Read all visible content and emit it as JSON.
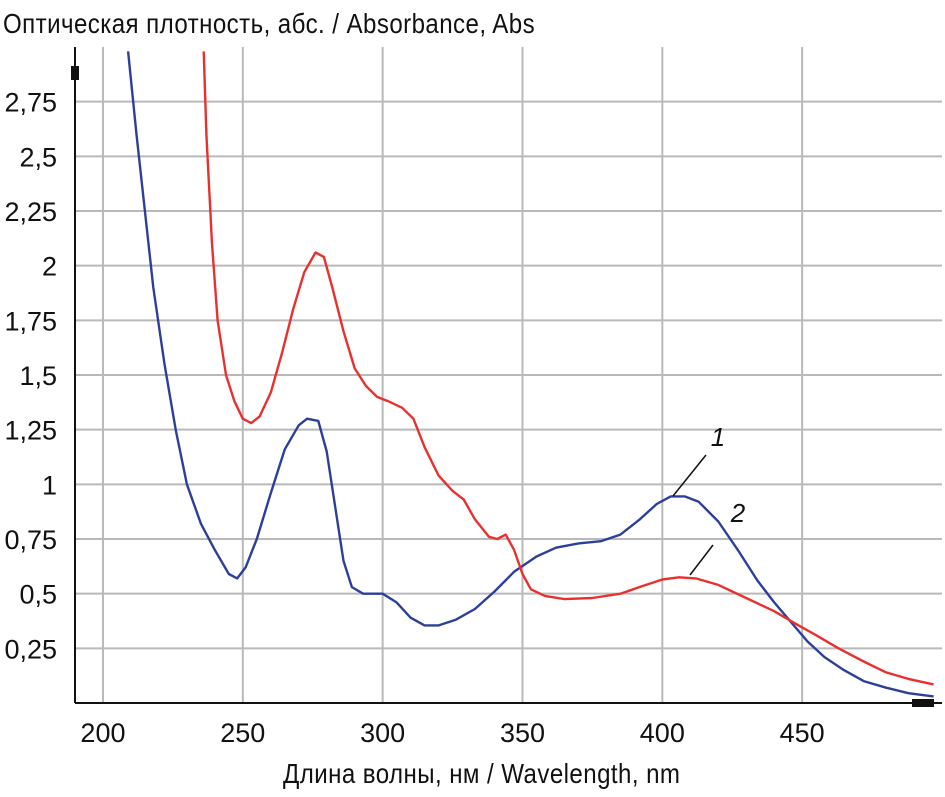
{
  "chart_data": {
    "type": "line",
    "ylabel": "Оптическая плотность, абс. / Absorbance, Abs",
    "xlabel": "Длина волны, нм / Wavelength, nm",
    "xlim": [
      190,
      500
    ],
    "ylim": [
      0,
      3
    ],
    "grid": true,
    "x_ticks": [
      200,
      250,
      300,
      350,
      400,
      450
    ],
    "x_tick_labels": [
      "200",
      "250",
      "300",
      "350",
      "400",
      "450"
    ],
    "y_ticks": [
      0.25,
      0.5,
      0.75,
      1,
      1.25,
      1.5,
      1.75,
      2,
      2.25,
      2.5,
      2.75
    ],
    "y_tick_labels": [
      "0,25",
      "0,5",
      "0,75",
      "1",
      "1,25",
      "1,5",
      "1,75",
      "2",
      "2,25",
      "2,5",
      "2,75"
    ],
    "series": [
      {
        "name": "1",
        "color": "#2e3f99",
        "points": [
          [
            209,
            2.98
          ],
          [
            212,
            2.6
          ],
          [
            215,
            2.25
          ],
          [
            218,
            1.9
          ],
          [
            222,
            1.55
          ],
          [
            226,
            1.25
          ],
          [
            230,
            1.0
          ],
          [
            235,
            0.82
          ],
          [
            240,
            0.7
          ],
          [
            245,
            0.59
          ],
          [
            248,
            0.57
          ],
          [
            251,
            0.62
          ],
          [
            255,
            0.75
          ],
          [
            260,
            0.96
          ],
          [
            265,
            1.16
          ],
          [
            270,
            1.27
          ],
          [
            273,
            1.3
          ],
          [
            277,
            1.29
          ],
          [
            280,
            1.15
          ],
          [
            283,
            0.9
          ],
          [
            286,
            0.65
          ],
          [
            289,
            0.53
          ],
          [
            293,
            0.5
          ],
          [
            300,
            0.5
          ],
          [
            305,
            0.46
          ],
          [
            310,
            0.39
          ],
          [
            315,
            0.355
          ],
          [
            320,
            0.355
          ],
          [
            326,
            0.38
          ],
          [
            333,
            0.43
          ],
          [
            340,
            0.51
          ],
          [
            347,
            0.6
          ],
          [
            355,
            0.67
          ],
          [
            362,
            0.71
          ],
          [
            370,
            0.73
          ],
          [
            378,
            0.74
          ],
          [
            385,
            0.77
          ],
          [
            392,
            0.84
          ],
          [
            398,
            0.91
          ],
          [
            403,
            0.945
          ],
          [
            408,
            0.945
          ],
          [
            413,
            0.92
          ],
          [
            420,
            0.83
          ],
          [
            427,
            0.7
          ],
          [
            434,
            0.56
          ],
          [
            440,
            0.46
          ],
          [
            446,
            0.37
          ],
          [
            452,
            0.28
          ],
          [
            458,
            0.21
          ],
          [
            465,
            0.15
          ],
          [
            472,
            0.1
          ],
          [
            480,
            0.07
          ],
          [
            488,
            0.045
          ],
          [
            497,
            0.03
          ]
        ]
      },
      {
        "name": "2",
        "color": "#e8312f",
        "points": [
          [
            236,
            2.98
          ],
          [
            237,
            2.6
          ],
          [
            239,
            2.1
          ],
          [
            241,
            1.75
          ],
          [
            244,
            1.5
          ],
          [
            247,
            1.38
          ],
          [
            250,
            1.3
          ],
          [
            253,
            1.28
          ],
          [
            256,
            1.31
          ],
          [
            260,
            1.42
          ],
          [
            264,
            1.6
          ],
          [
            268,
            1.8
          ],
          [
            272,
            1.97
          ],
          [
            276,
            2.06
          ],
          [
            279,
            2.04
          ],
          [
            282,
            1.9
          ],
          [
            286,
            1.7
          ],
          [
            290,
            1.53
          ],
          [
            294,
            1.45
          ],
          [
            298,
            1.4
          ],
          [
            302,
            1.38
          ],
          [
            307,
            1.35
          ],
          [
            311,
            1.3
          ],
          [
            315,
            1.17
          ],
          [
            320,
            1.04
          ],
          [
            325,
            0.97
          ],
          [
            329,
            0.93
          ],
          [
            333,
            0.84
          ],
          [
            338,
            0.76
          ],
          [
            341,
            0.75
          ],
          [
            344,
            0.77
          ],
          [
            347,
            0.7
          ],
          [
            350,
            0.59
          ],
          [
            353,
            0.52
          ],
          [
            358,
            0.49
          ],
          [
            365,
            0.475
          ],
          [
            375,
            0.48
          ],
          [
            385,
            0.5
          ],
          [
            393,
            0.535
          ],
          [
            400,
            0.565
          ],
          [
            406,
            0.575
          ],
          [
            412,
            0.57
          ],
          [
            420,
            0.54
          ],
          [
            430,
            0.48
          ],
          [
            440,
            0.42
          ],
          [
            448,
            0.36
          ],
          [
            455,
            0.31
          ],
          [
            463,
            0.25
          ],
          [
            472,
            0.19
          ],
          [
            480,
            0.14
          ],
          [
            488,
            0.11
          ],
          [
            497,
            0.085
          ]
        ]
      }
    ],
    "annotations": [
      {
        "text": "1",
        "series": "1"
      },
      {
        "text": "2",
        "series": "2"
      }
    ]
  }
}
